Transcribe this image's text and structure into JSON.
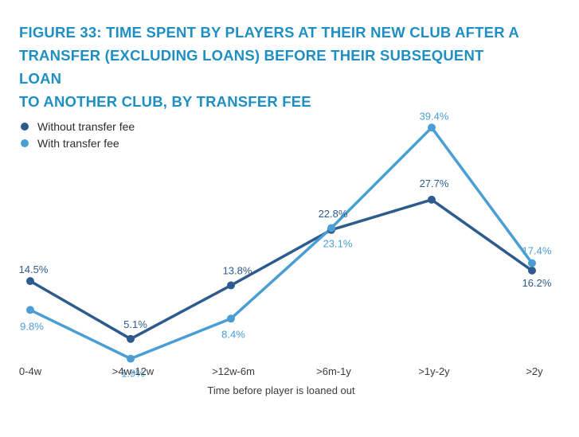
{
  "chart_data": {
    "type": "line",
    "title_lines": [
      "FIGURE 33: TIME SPENT BY PLAYERS AT THEIR NEW CLUB AFTER A",
      "TRANSFER (EXCLUDING LOANS) BEFORE THEIR SUBSEQUENT LOAN",
      "TO ANOTHER CLUB, BY TRANSFER FEE"
    ],
    "categories": [
      "0-4w",
      ">4w-12w",
      ">12w-6m",
      ">6m-1y",
      ">1y-2y",
      ">2y"
    ],
    "xlabel": "Time before player is loaned out",
    "ylabel": "",
    "ylim": [
      0,
      45
    ],
    "grid": false,
    "legend_position": "top-left",
    "series": [
      {
        "name": "Without transfer fee",
        "color": "#2d5b8e",
        "values": [
          14.5,
          5.1,
          13.8,
          22.8,
          27.7,
          16.2
        ],
        "labels": [
          "14.5%",
          "5.1%",
          "13.8%",
          "22.8%",
          "27.7%",
          "16.2%"
        ]
      },
      {
        "name": "With transfer fee",
        "color": "#4a9ed4",
        "values": [
          9.8,
          1.9,
          8.4,
          23.1,
          39.4,
          17.4
        ],
        "labels": [
          "9.8%",
          "1.9%",
          "8.4%",
          "23.1%",
          "39.4%",
          "17.4%"
        ]
      }
    ]
  }
}
